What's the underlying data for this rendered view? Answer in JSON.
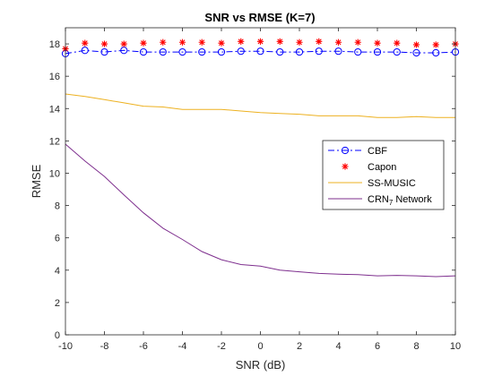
{
  "chart_data": {
    "type": "line",
    "title": "SNR vs RMSE (K=7)",
    "xlabel": "SNR (dB)",
    "ylabel": "RMSE",
    "xlim": [
      -10,
      10
    ],
    "ylim": [
      0,
      19
    ],
    "xticks": [
      -10,
      -8,
      -6,
      -4,
      -2,
      0,
      2,
      4,
      6,
      8,
      10
    ],
    "yticks": [
      0,
      2,
      4,
      6,
      8,
      10,
      12,
      14,
      16,
      18
    ],
    "grid": false,
    "legend_position": "right",
    "x": [
      -10,
      -9,
      -8,
      -7,
      -6,
      -5,
      -4,
      -3,
      -2,
      -1,
      0,
      1,
      2,
      3,
      4,
      5,
      6,
      7,
      8,
      9,
      10
    ],
    "series": [
      {
        "name": "CBF",
        "color": "#0000ff",
        "style": "dash-dot",
        "marker": "circle",
        "values": [
          17.4,
          17.6,
          17.5,
          17.6,
          17.5,
          17.5,
          17.5,
          17.5,
          17.5,
          17.55,
          17.55,
          17.5,
          17.5,
          17.55,
          17.55,
          17.5,
          17.5,
          17.5,
          17.45,
          17.45,
          17.5
        ]
      },
      {
        "name": "Capon",
        "color": "#ff0000",
        "style": "none",
        "marker": "asterisk",
        "values": [
          17.7,
          18.05,
          18.0,
          18.0,
          18.05,
          18.1,
          18.1,
          18.1,
          18.05,
          18.15,
          18.15,
          18.15,
          18.1,
          18.15,
          18.1,
          18.1,
          18.05,
          18.05,
          17.95,
          17.95,
          18.0
        ]
      },
      {
        "name": "SS-MUSIC",
        "color": "#edb120",
        "style": "solid",
        "marker": "none",
        "values": [
          14.9,
          14.75,
          14.55,
          14.35,
          14.15,
          14.1,
          13.95,
          13.95,
          13.95,
          13.85,
          13.75,
          13.7,
          13.65,
          13.55,
          13.55,
          13.55,
          13.45,
          13.45,
          13.5,
          13.45,
          13.45
        ]
      },
      {
        "name": "CRN",
        "name_subscript": "7",
        "name_suffix": " Network",
        "color": "#7e2f8e",
        "style": "solid",
        "marker": "none",
        "values": [
          11.8,
          10.75,
          9.8,
          8.65,
          7.55,
          6.6,
          5.9,
          5.15,
          4.65,
          4.35,
          4.25,
          4.0,
          3.9,
          3.8,
          3.75,
          3.72,
          3.65,
          3.68,
          3.65,
          3.6,
          3.65
        ]
      }
    ]
  }
}
